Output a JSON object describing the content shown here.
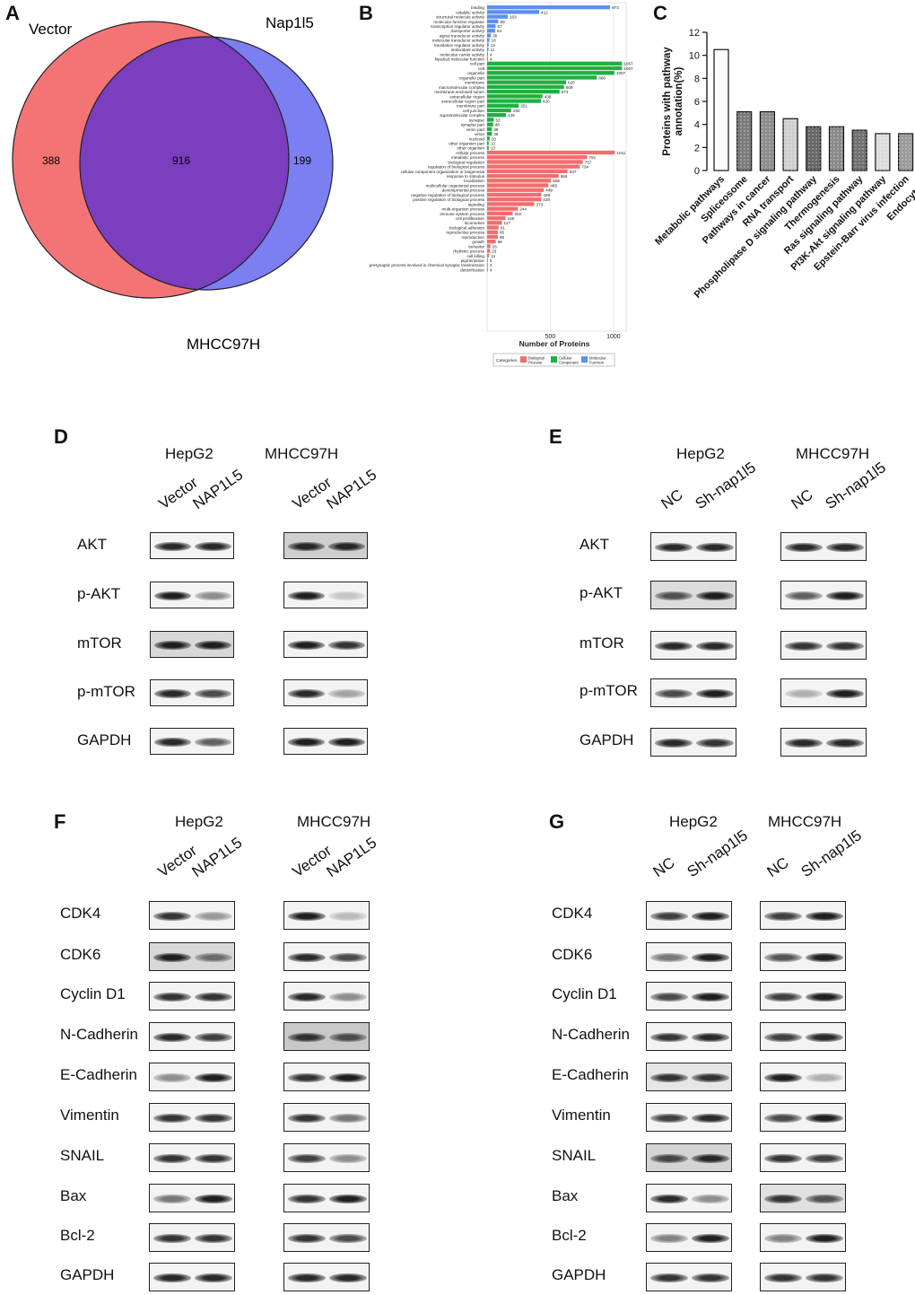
{
  "panels": {
    "A": "A",
    "B": "B",
    "C": "C",
    "D": "D",
    "E": "E",
    "F": "F",
    "G": "G"
  },
  "venn": {
    "left_label": "Vector",
    "right_label": "Nap1l5",
    "bottom_label": "MHCC97H",
    "left_only": "388",
    "overlap": "916",
    "right_only": "199",
    "left_color": "#f47476",
    "right_color": "#7b7ff2",
    "overlap_color": "#7a3ebf"
  },
  "chart_data": [
    {
      "type": "bar",
      "orientation": "horizontal",
      "title": "",
      "xlabel": "Number of Proteins",
      "xticks": [
        "500",
        "1000"
      ],
      "xlim": [
        0,
        1100
      ],
      "legend_title": "Categories",
      "series": [
        {
          "name": "Molecular Function",
          "color": "#5b8ff0",
          "categories": [
            "binding",
            "catalytic activity",
            "structural molecule activity",
            "molecular function regulator",
            "transcription regulator activity",
            "transporter activity",
            "signal transducer activity",
            "molecular transducer activity",
            "translation regulator activity",
            "antioxidant activity",
            "molecular carrier activity",
            "hijacked molecular function"
          ],
          "values": [
            973,
            412,
            163,
            89,
            67,
            64,
            30,
            18,
            12,
            11,
            4,
            4
          ]
        },
        {
          "name": "Cellular Component",
          "color": "#1fb041",
          "categories": [
            "cell part",
            "cell",
            "organelle",
            "organelle part",
            "membrane",
            "macromolecular complex",
            "membrane-enclosed lumen",
            "extracellular region",
            "extracellular region part",
            "membrane part",
            "cell junction",
            "supramolecular complex",
            "synapse",
            "synapse part",
            "virion part",
            "virion",
            "nucleoid",
            "other organism part",
            "other organism"
          ],
          "values": [
            1067,
            1067,
            1007,
            868,
            625,
            609,
            573,
            438,
            426,
            251,
            190,
            149,
            53,
            48,
            38,
            38,
            20,
            13,
            13
          ]
        },
        {
          "name": "Biological Process",
          "color": "#f26d6d",
          "categories": [
            "cellular process",
            "metabolic process",
            "biological regulation",
            "regulation of biological process",
            "cellular component organization or biogenesis",
            "response to stimulus",
            "localization",
            "multicellular organismal process",
            "developmental process",
            "negative regulation of biological process",
            "positive regulation of biological process",
            "signaling",
            "multi-organism process",
            "immune system process",
            "cell proliferation",
            "locomotion",
            "biological adhesion",
            "reproductive process",
            "reproduction",
            "growth",
            "behavior",
            "rhythmic process",
            "cell killing",
            "pigmentation",
            "presynaptic process involved in chemical synaptic transmission",
            "detoxification"
          ],
          "values": [
            1011,
            791,
            757,
            734,
            637,
            566,
            506,
            485,
            449,
            429,
            428,
            373,
            244,
            202,
            146,
            117,
            91,
            85,
            85,
            68,
            26,
            23,
            14,
            5,
            4,
            4
          ]
        }
      ],
      "legend": [
        "Biological Process",
        "Cellular Component",
        "Molecular Function"
      ]
    },
    {
      "type": "bar",
      "title": "",
      "xlabel": "",
      "ylabel": "Proteins with pathway annotation(%)",
      "ylim": [
        0,
        12
      ],
      "yticks": [
        "0",
        "2",
        "4",
        "6",
        "8",
        "10",
        "12"
      ],
      "categories": [
        "Metabolic pathways",
        "Spliceosome",
        "Pathways in cancer",
        "RNA transport",
        "Phospholipase D signaling pathway",
        "Thermogenesis",
        "Ras signaling pathway",
        "PI3K-Akt signaling pathway",
        "Epstein-Barr virus infection",
        "Endocytosis"
      ],
      "values": [
        10.5,
        5.1,
        5.1,
        4.5,
        3.8,
        3.8,
        3.5,
        3.2,
        3.2,
        3.2
      ]
    }
  ],
  "blot_D": {
    "cell_lines": [
      "HepG2",
      "MHCC97H"
    ],
    "lanes": [
      "Vector",
      "NAP1L5"
    ],
    "proteins": [
      "AKT",
      "p-AKT",
      "mTOR",
      "p-mTOR",
      "GAPDH"
    ]
  },
  "blot_E": {
    "cell_lines": [
      "HepG2",
      "MHCC97H"
    ],
    "lanes": [
      "NC",
      "Sh-nap1l5"
    ],
    "proteins": [
      "AKT",
      "p-AKT",
      "mTOR",
      "p-mTOR",
      "GAPDH"
    ]
  },
  "blot_F": {
    "cell_lines": [
      "HepG2",
      "MHCC97H"
    ],
    "lanes": [
      "Vector",
      "NAP1L5"
    ],
    "proteins": [
      "CDK4",
      "CDK6",
      "Cyclin D1",
      "N-Cadherin",
      "E-Cadherin",
      "Vimentin",
      "SNAIL",
      "Bax",
      "Bcl-2",
      "GAPDH"
    ]
  },
  "blot_G": {
    "cell_lines": [
      "HepG2",
      "MHCC97H"
    ],
    "lanes": [
      "NC",
      "Sh-nap1l5"
    ],
    "proteins": [
      "CDK4",
      "CDK6",
      "Cyclin D1",
      "N-Cadherin",
      "E-Cadherin",
      "Vimentin",
      "SNAIL",
      "Bax",
      "Bcl-2",
      "GAPDH"
    ]
  }
}
